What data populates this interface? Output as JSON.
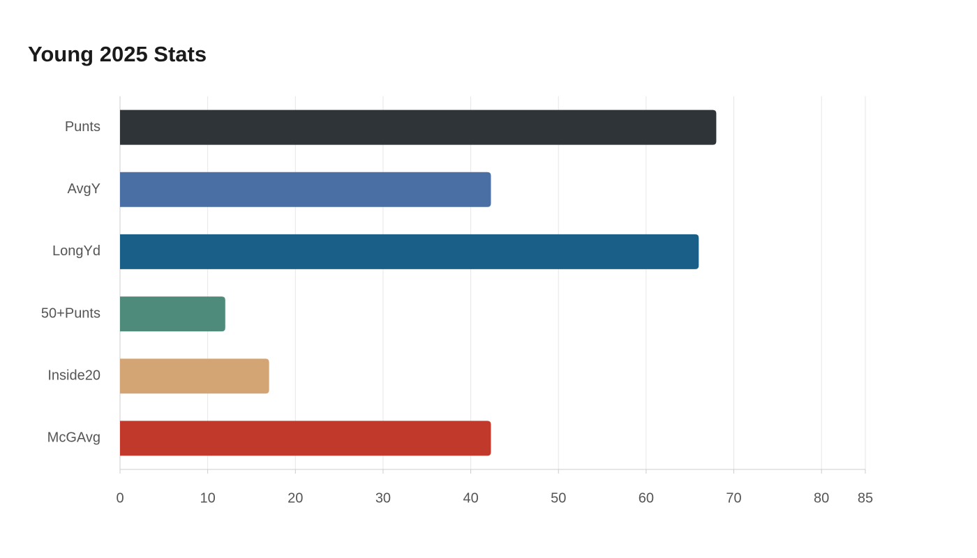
{
  "chart_data": {
    "type": "bar",
    "orientation": "horizontal",
    "title": "Young 2025 Stats",
    "categories": [
      "Punts",
      "AvgY",
      "LongYd",
      "50+Punts",
      "Inside20",
      "McGAvg"
    ],
    "values": [
      68,
      42.3,
      66,
      12,
      17,
      42.3
    ],
    "colors": [
      "#2e3438",
      "#4a6fa5",
      "#1a5f87",
      "#4f8b7a",
      "#d4a574",
      "#c0392b"
    ],
    "xlim": [
      0,
      85
    ],
    "xticks": [
      0,
      10,
      20,
      30,
      40,
      50,
      60,
      70,
      80,
      85
    ],
    "grid": true
  }
}
